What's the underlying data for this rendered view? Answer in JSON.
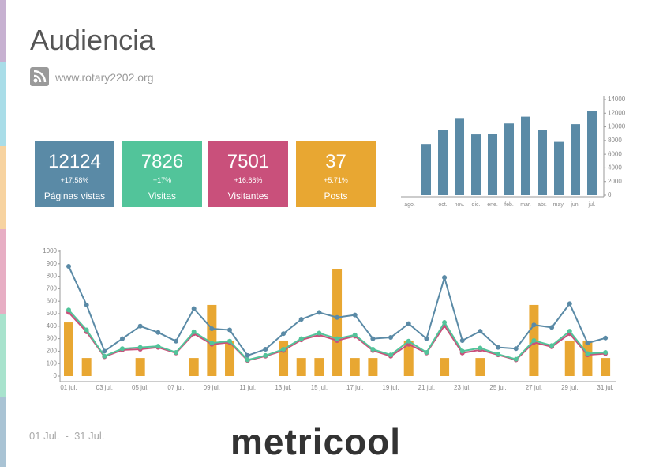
{
  "header": {
    "title": "Audiencia",
    "url": "www.rotary2202.org"
  },
  "cards": [
    {
      "value": "12124",
      "change": "+17.58%",
      "label": "Páginas vistas",
      "color": "#5a8aa6"
    },
    {
      "value": "7826",
      "change": "+17%",
      "label": "Visitas",
      "color": "#52c49a"
    },
    {
      "value": "7501",
      "change": "+16.66%",
      "label": "Visitantes",
      "color": "#c9507b"
    },
    {
      "value": "37",
      "change": "+5.71%",
      "label": "Posts",
      "color": "#e8a732"
    }
  ],
  "chart_data": [
    {
      "type": "bar",
      "color": "#5a8aa6",
      "categories": [
        "ago.",
        null,
        "oct.",
        "nov.",
        "dic.",
        "ene.",
        "feb.",
        "mar.",
        "abr.",
        "may.",
        "jun.",
        "jul."
      ],
      "values": [
        0,
        7500,
        9600,
        11300,
        8900,
        9000,
        10500,
        11500,
        9600,
        7800,
        10400,
        12300
      ],
      "ylim": [
        0,
        14000
      ],
      "yticks": [
        0,
        2000,
        4000,
        6000,
        8000,
        10000,
        12000,
        14000
      ]
    },
    {
      "type": "line",
      "categories": [
        "01 jul.",
        null,
        "03 jul.",
        null,
        "05 jul.",
        null,
        "07 jul.",
        null,
        "09 jul.",
        null,
        "11 jul.",
        null,
        "13 jul.",
        null,
        "15 jul.",
        null,
        "17 jul.",
        null,
        "19 jul.",
        null,
        "21 jul.",
        null,
        "23 jul.",
        null,
        "25 jul.",
        null,
        "27 jul.",
        null,
        "29 jul.",
        null,
        "31 jul."
      ],
      "ylim": [
        0,
        1000
      ],
      "yticks": [
        0,
        100,
        200,
        300,
        400,
        500,
        600,
        700,
        800,
        900,
        1000
      ],
      "series": [
        {
          "type": "bar",
          "color": "#e8a732",
          "values": [
            430,
            145,
            0,
            0,
            145,
            0,
            0,
            145,
            570,
            285,
            0,
            0,
            285,
            145,
            145,
            855,
            145,
            145,
            0,
            285,
            0,
            145,
            0,
            145,
            0,
            0,
            570,
            0,
            285,
            285,
            145
          ]
        },
        {
          "color": "#5a8aa6",
          "values": [
            880,
            570,
            200,
            300,
            400,
            350,
            280,
            540,
            380,
            370,
            165,
            215,
            340,
            455,
            510,
            470,
            490,
            300,
            310,
            420,
            300,
            790,
            285,
            360,
            230,
            220,
            410,
            390,
            580,
            265,
            305
          ]
        },
        {
          "color": "#c9507b",
          "values": [
            510,
            355,
            155,
            210,
            215,
            230,
            185,
            340,
            255,
            270,
            125,
            160,
            205,
            290,
            330,
            285,
            320,
            205,
            160,
            255,
            185,
            405,
            185,
            210,
            170,
            130,
            270,
            235,
            340,
            170,
            180
          ]
        },
        {
          "color": "#52c49a",
          "values": [
            530,
            370,
            160,
            220,
            230,
            240,
            190,
            355,
            265,
            280,
            130,
            165,
            215,
            300,
            345,
            300,
            330,
            215,
            170,
            280,
            190,
            430,
            200,
            225,
            175,
            135,
            285,
            245,
            360,
            180,
            190
          ]
        }
      ]
    }
  ],
  "footer": {
    "dates": "01 Jul.  -  31 Jul.",
    "logo": "metricool"
  }
}
